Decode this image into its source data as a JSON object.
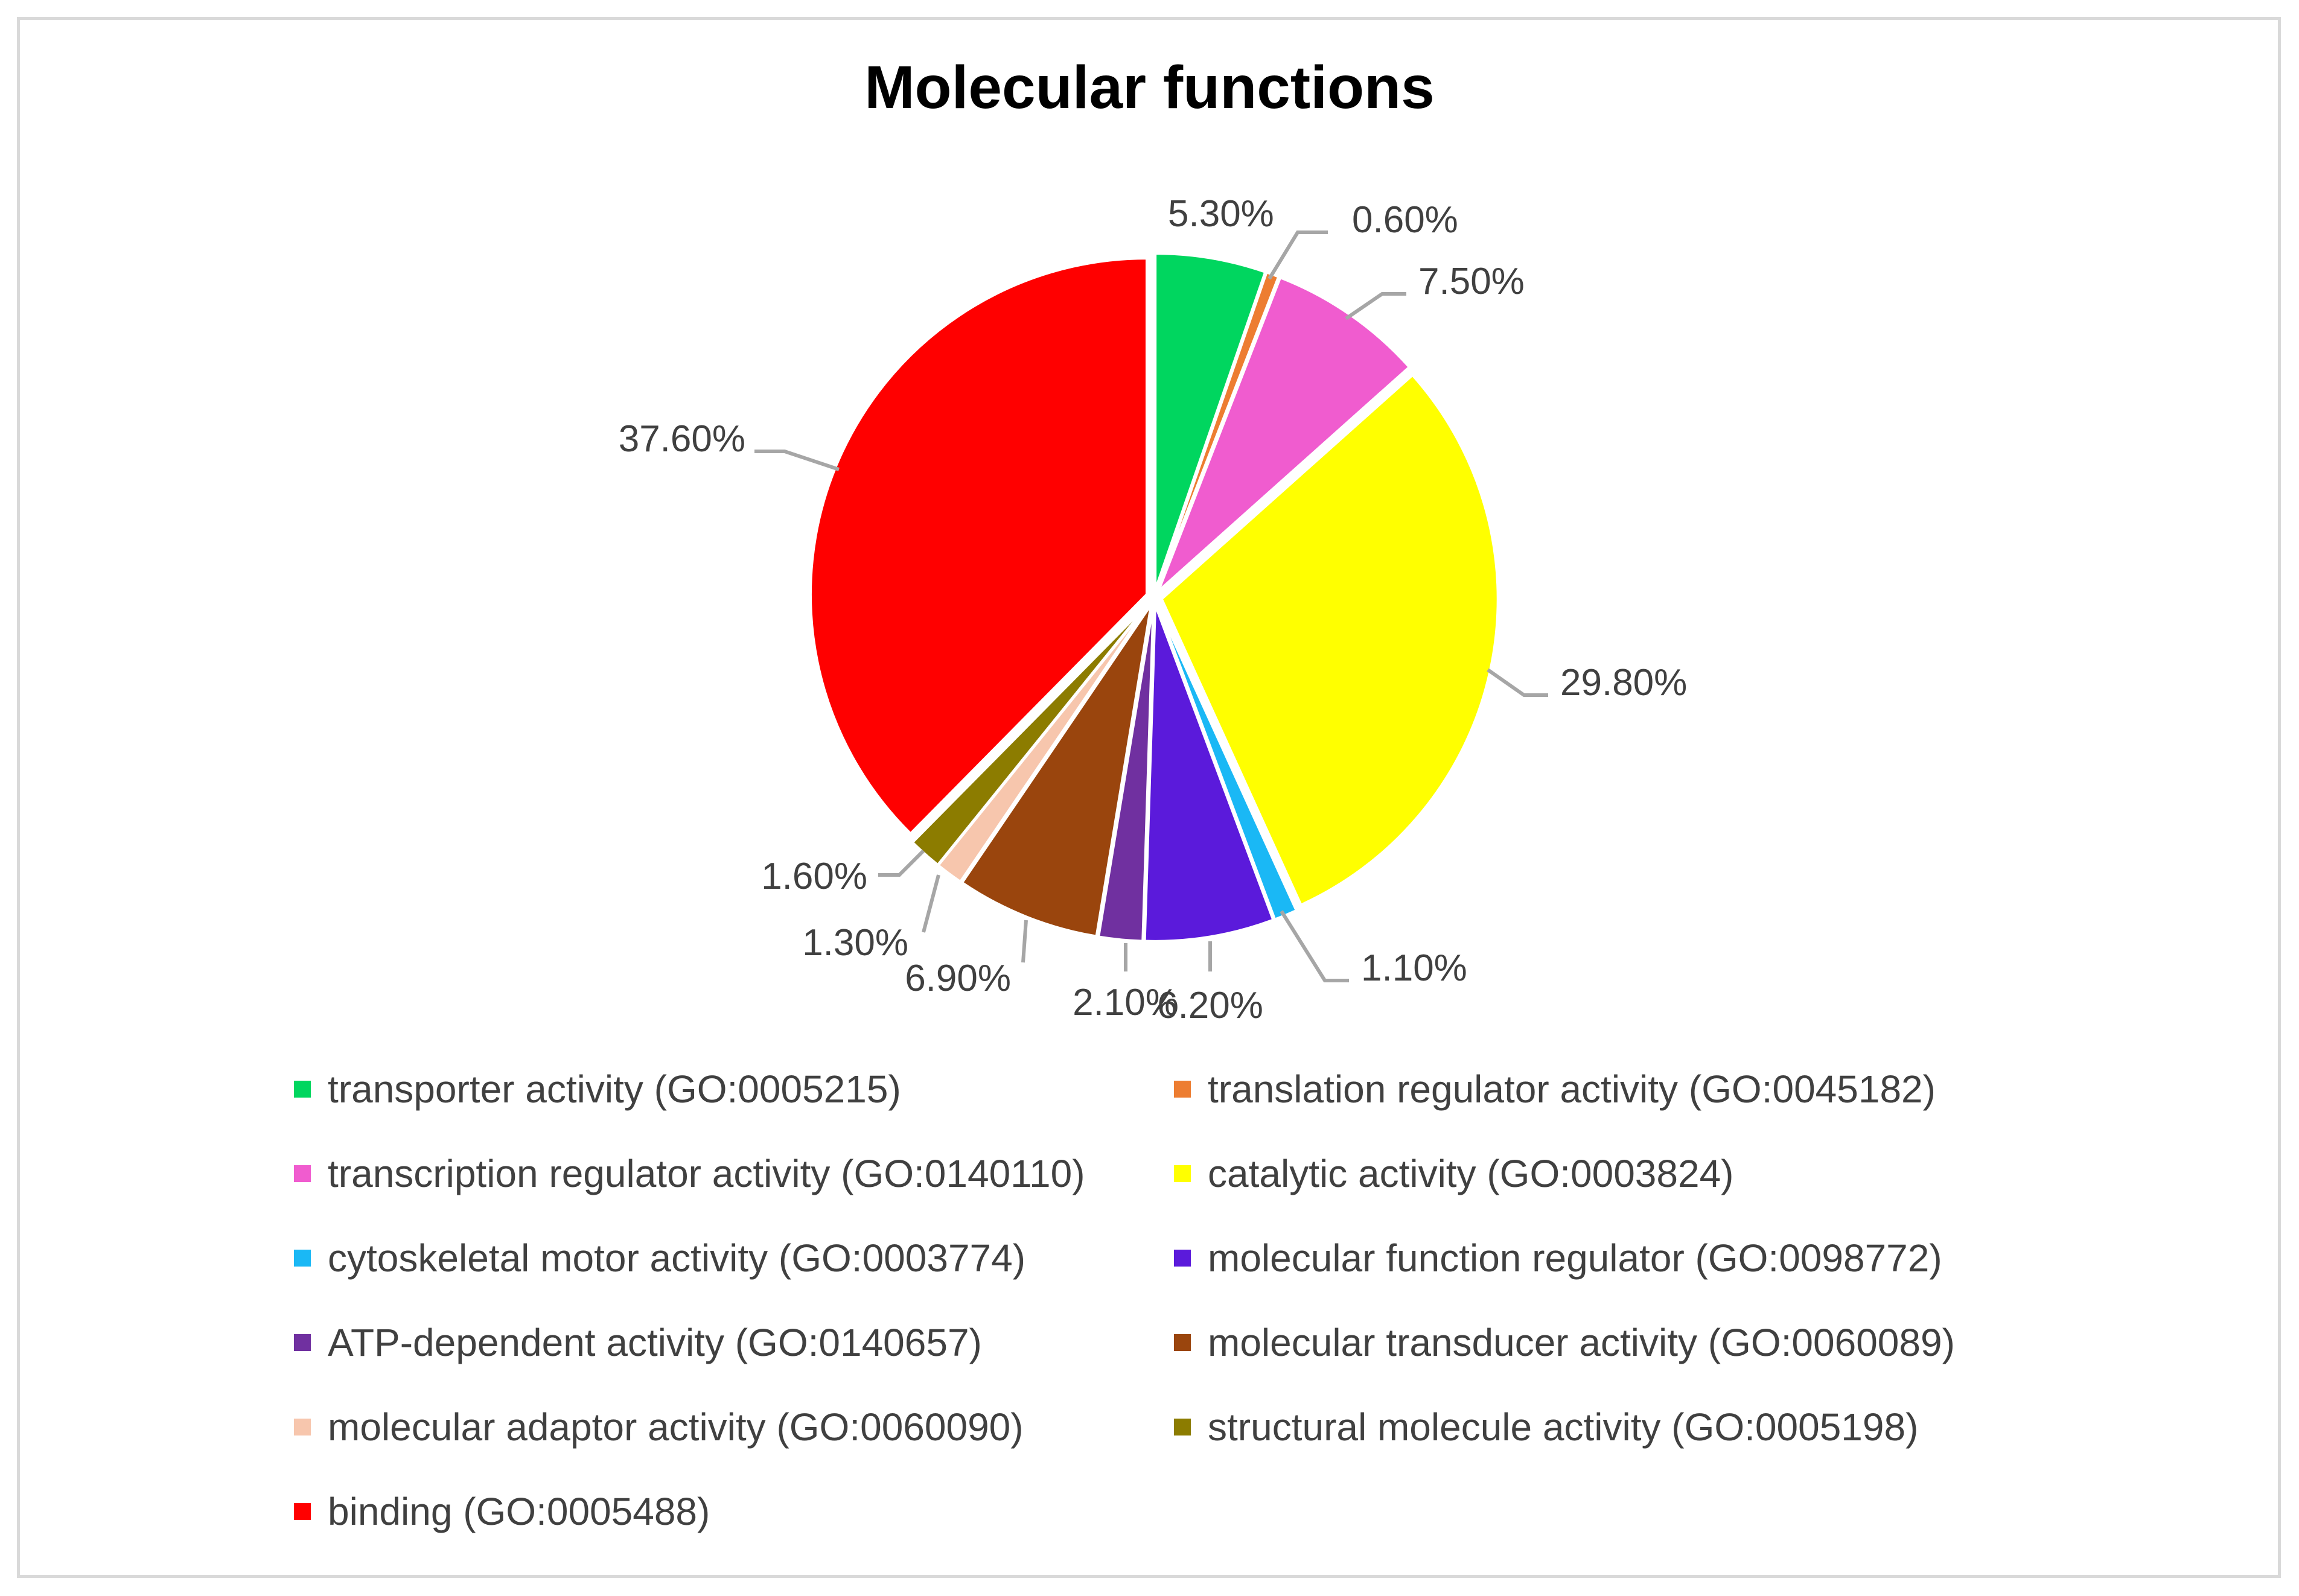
{
  "chart_data": {
    "type": "pie",
    "title": "Molecular functions",
    "slices": [
      {
        "name": "transporter activity (GO:0005215)",
        "value": 5.3,
        "label": "5.30%",
        "color": "#00d65f"
      },
      {
        "name": "translation regulator activity (GO:0045182)",
        "value": 0.6,
        "label": "0.60%",
        "color": "#ed7d31"
      },
      {
        "name": "transcription regulator activity (GO:0140110)",
        "value": 7.5,
        "label": "7.50%",
        "color": "#f05ccf"
      },
      {
        "name": "catalytic activity (GO:0003824)",
        "value": 29.8,
        "label": "29.80%",
        "color": "#ffff00"
      },
      {
        "name": "cytoskeletal motor activity (GO:0003774)",
        "value": 1.1,
        "label": "1.10%",
        "color": "#1ab8f5"
      },
      {
        "name": "molecular function regulator (GO:0098772)",
        "value": 6.2,
        "label": "6.20%",
        "color": "#5b1adb"
      },
      {
        "name": "ATP-dependent activity (GO:0140657)",
        "value": 2.1,
        "label": "2.10%",
        "color": "#7030a0"
      },
      {
        "name": "molecular transducer activity (GO:0060089)",
        "value": 6.9,
        "label": "6.90%",
        "color": "#9a450d"
      },
      {
        "name": "molecular adaptor activity (GO:0060090)",
        "value": 1.3,
        "label": "1.30%",
        "color": "#f7c6ad"
      },
      {
        "name": "structural molecule activity (GO:0005198)",
        "value": 1.6,
        "label": "1.60%",
        "color": "#8c7c00"
      },
      {
        "name": "binding (GO:0005488)",
        "value": 37.6,
        "label": "37.60%",
        "color": "#ff0000"
      }
    ],
    "legend_position": "bottom"
  }
}
